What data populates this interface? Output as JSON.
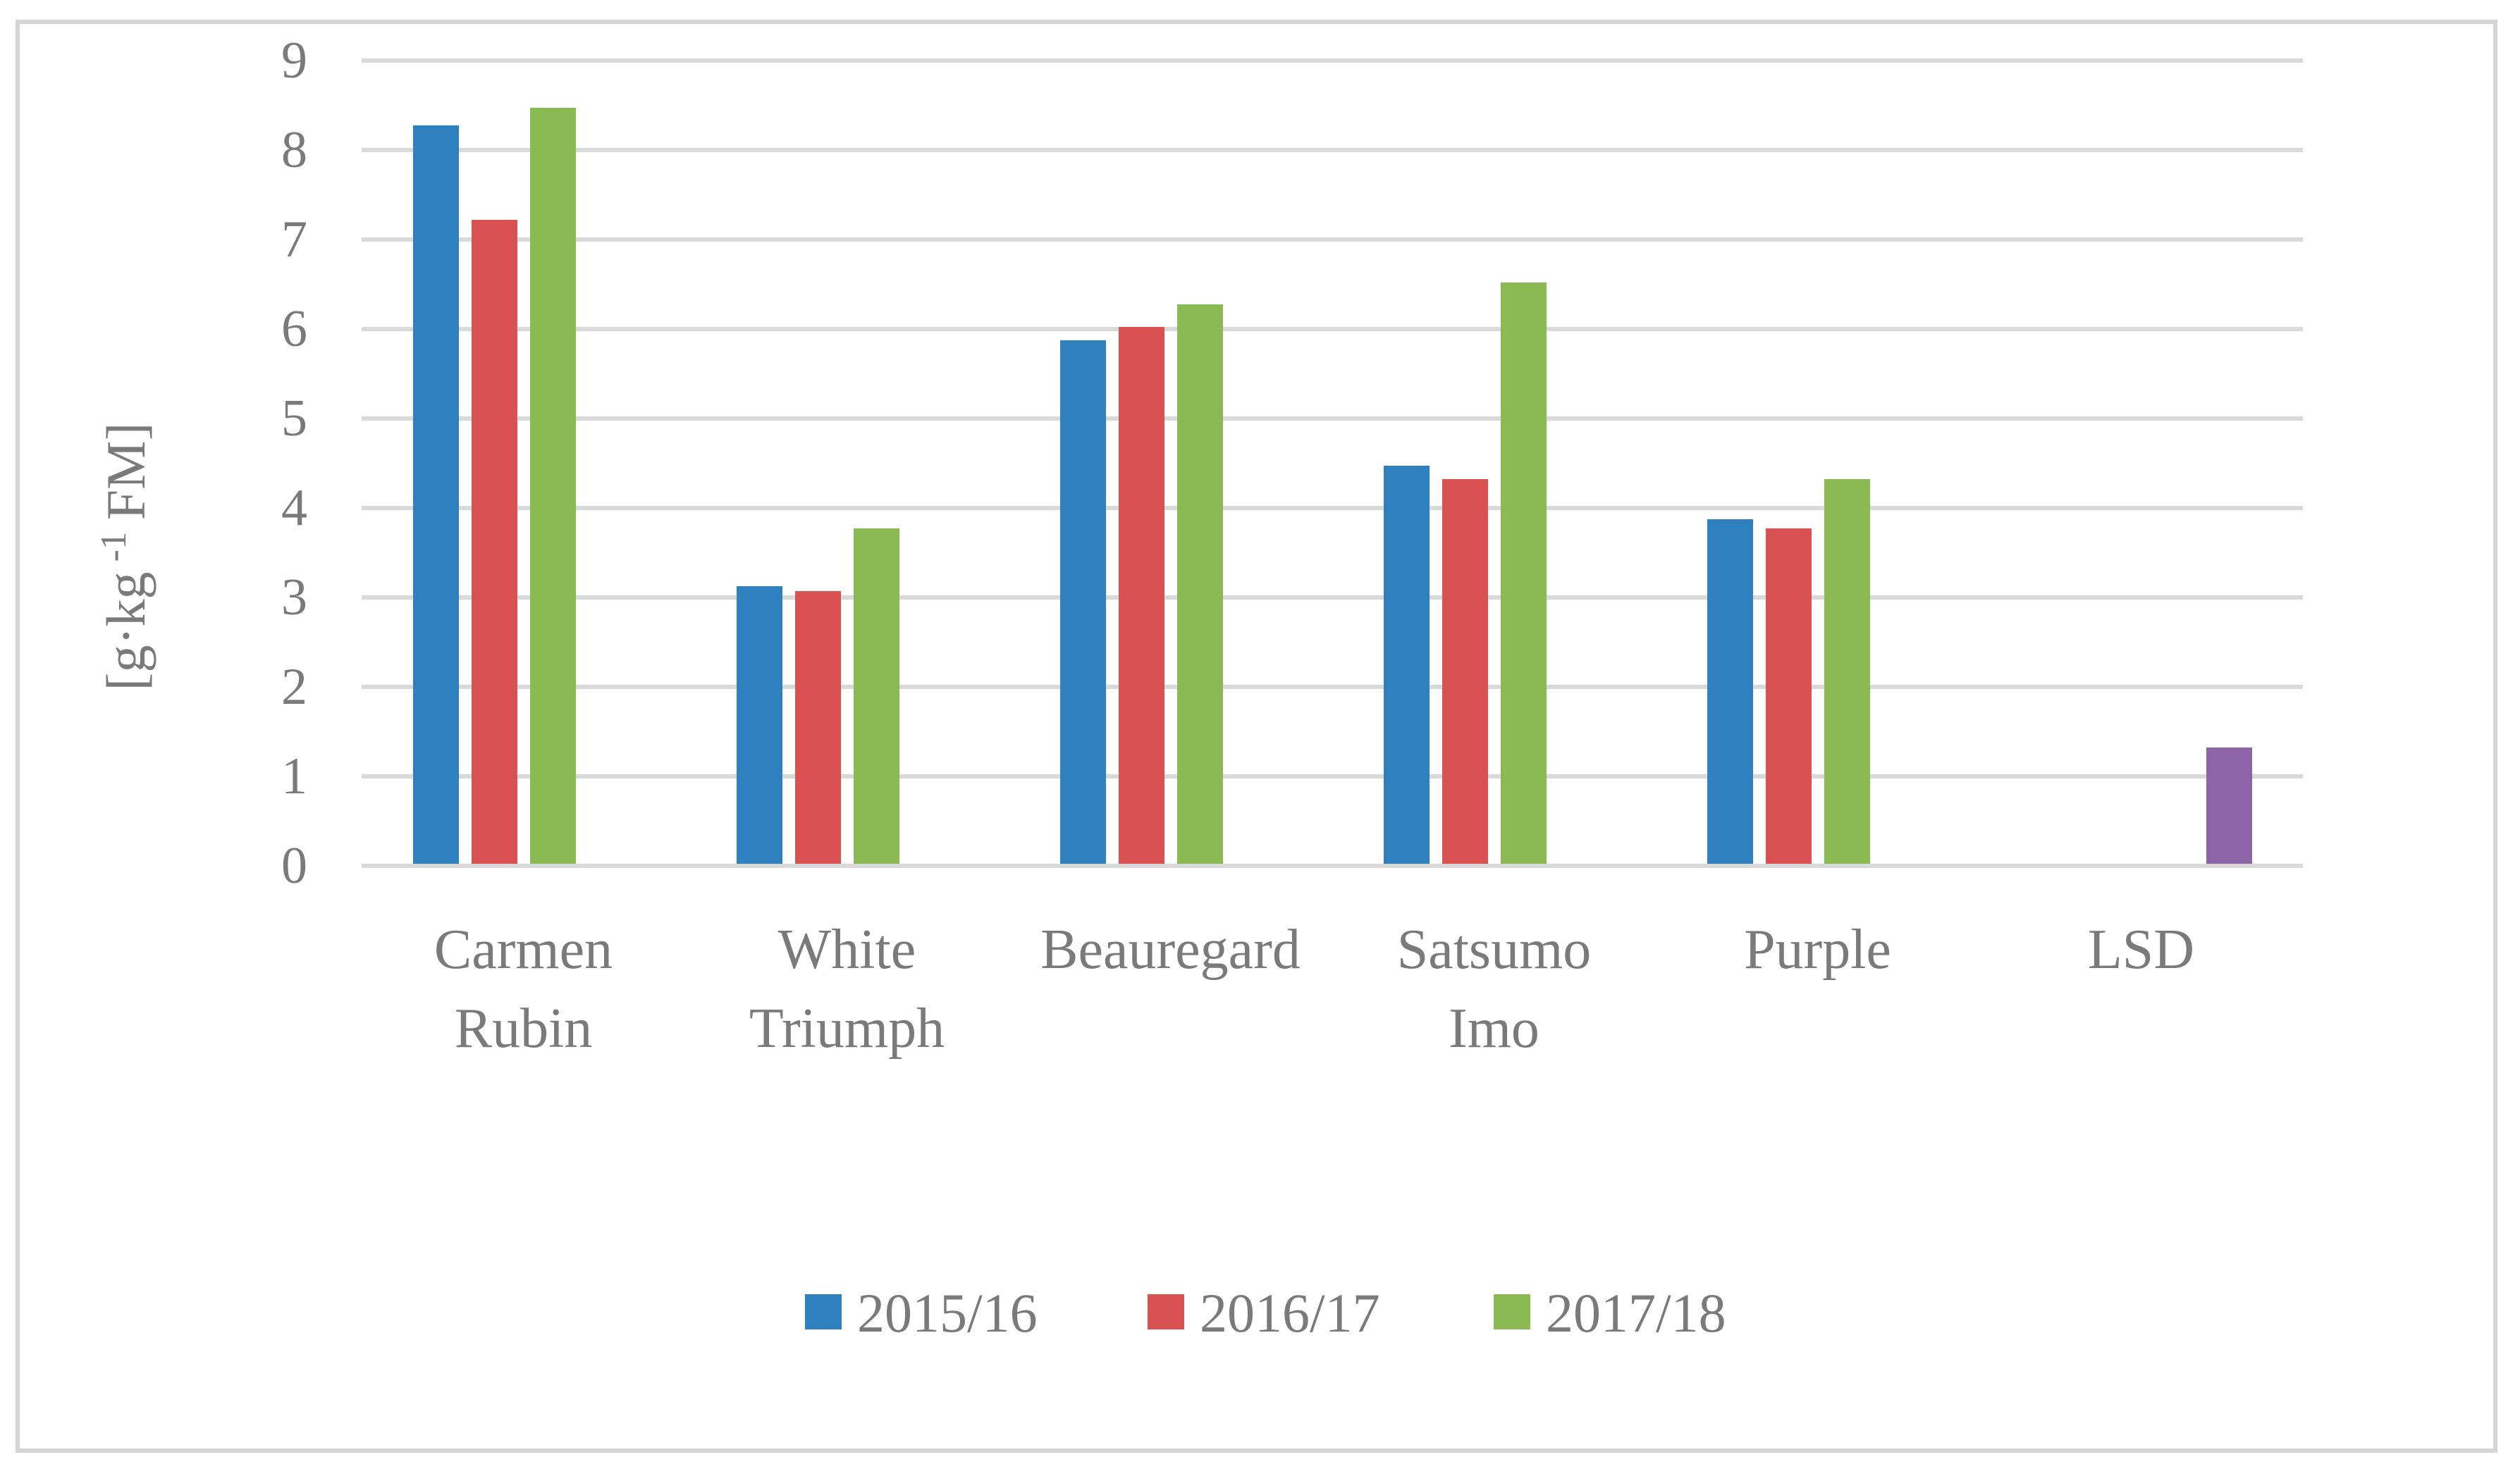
{
  "figure": {
    "background": "#FFFFFF",
    "border_color": "#D5D5D5"
  },
  "chart_data": {
    "type": "bar",
    "title": "",
    "ylabel": "[g·kg -1 FM]",
    "ylabel_parts": {
      "prefix": "[g·kg",
      "superscript": "-1",
      "suffix": "FM]"
    },
    "xlabel": "",
    "ylim": [
      0,
      9
    ],
    "yticks": [
      0,
      1,
      2,
      3,
      4,
      5,
      6,
      7,
      8,
      9
    ],
    "grid": "horizontal",
    "legend_position": "bottom",
    "categories": [
      "Carmen Rubin",
      "White Triumph",
      "Beauregard",
      "Satsumo Imo",
      "Purple",
      "LSD"
    ],
    "series": [
      {
        "name": "2015/16",
        "color": "#2E81BE",
        "in_legend": true,
        "values": [
          8.25,
          3.1,
          5.85,
          4.45,
          3.85,
          null
        ]
      },
      {
        "name": "2016/17",
        "color": "#D95151",
        "in_legend": true,
        "values": [
          7.2,
          3.05,
          6.0,
          4.3,
          3.75,
          null
        ]
      },
      {
        "name": "2017/18",
        "color": "#8BBA52",
        "in_legend": true,
        "values": [
          8.45,
          3.75,
          6.25,
          6.5,
          4.3,
          null
        ]
      },
      {
        "name": "LSD",
        "color": "#8C64A7",
        "in_legend": false,
        "values": [
          null,
          null,
          null,
          null,
          null,
          1.3
        ]
      }
    ],
    "colors": {
      "grid": "#D9D9D9",
      "axis_text": "#7A7A7A"
    }
  }
}
